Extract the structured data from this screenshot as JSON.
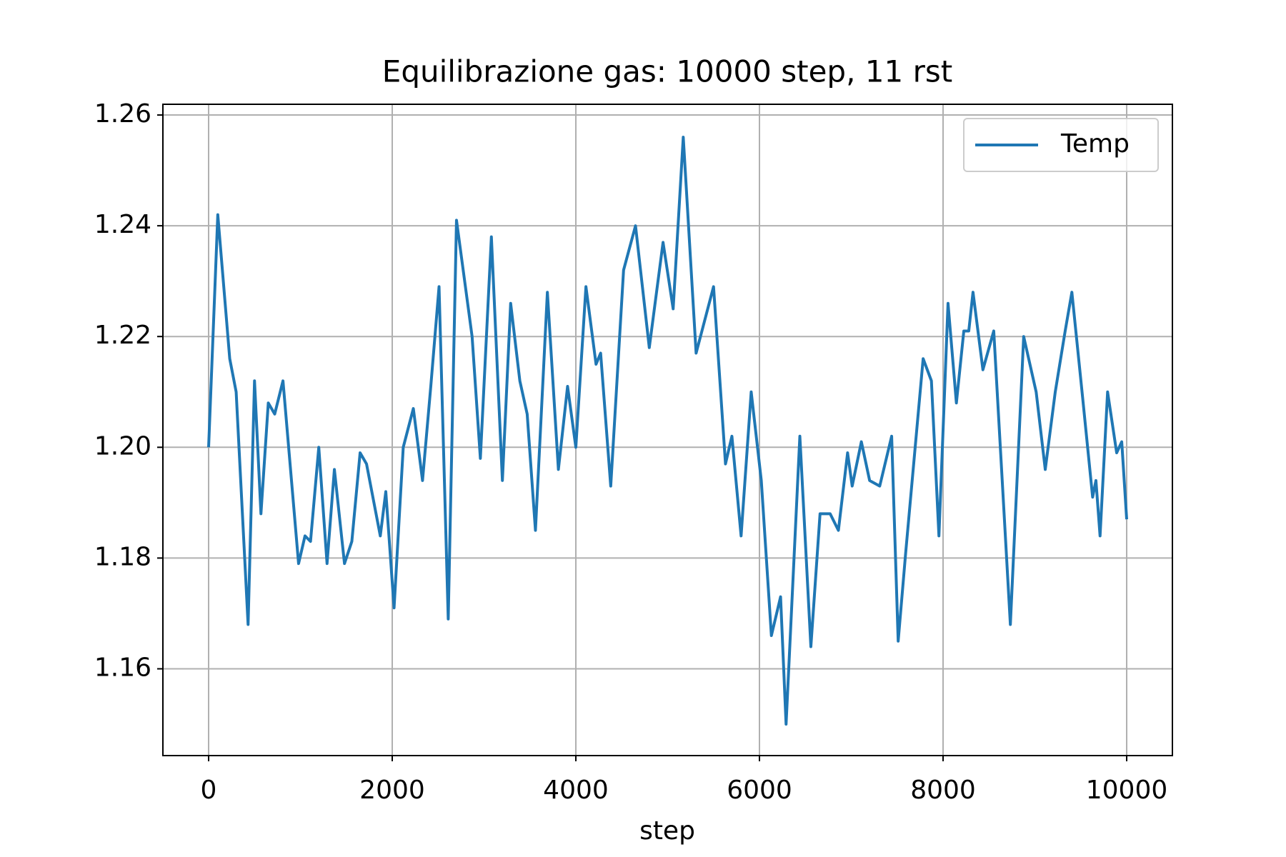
{
  "chart_data": {
    "type": "line",
    "title": "Equilibrazione gas: 10000 step, 11 rst",
    "x_label": "step",
    "xlim": [
      -498,
      10498
    ],
    "ylim": [
      1.14433,
      1.26194
    ],
    "xticks": [
      0,
      2000,
      4000,
      6000,
      8000,
      10000
    ],
    "yticks": [
      {
        "value": 1.16,
        "label": "1.16"
      },
      {
        "value": 1.18,
        "label": "1.18"
      },
      {
        "value": 1.2,
        "label": "1.20"
      },
      {
        "value": 1.22,
        "label": "1.22"
      },
      {
        "value": 1.24,
        "label": "1.24"
      },
      {
        "value": 1.26,
        "label": "1.26"
      }
    ],
    "grid": true,
    "legend": "upper right",
    "series": [
      {
        "name": "Temp",
        "color": "#1f77b4",
        "x": [
          0,
          100,
          230,
          300,
          430,
          500,
          570,
          650,
          720,
          810,
          980,
          1050,
          1110,
          1200,
          1290,
          1370,
          1480,
          1560,
          1650,
          1720,
          1870,
          1930,
          2020,
          2120,
          2230,
          2330,
          2420,
          2510,
          2610,
          2700,
          2870,
          2960,
          3080,
          3200,
          3290,
          3390,
          3470,
          3560,
          3690,
          3810,
          3910,
          4000,
          4110,
          4220,
          4270,
          4380,
          4520,
          4650,
          4800,
          4950,
          5060,
          5170,
          5310,
          5500,
          5630,
          5700,
          5800,
          5910,
          6020,
          6130,
          6230,
          6290,
          6440,
          6560,
          6660,
          6770,
          6860,
          6960,
          7010,
          7110,
          7200,
          7310,
          7440,
          7511,
          7593,
          7783,
          7873,
          7955,
          8054,
          8145,
          8226,
          8280,
          8326,
          8434,
          8552,
          8733,
          8878,
          9014,
          9113,
          9222,
          9330,
          9403,
          9520,
          9629,
          9665,
          9710,
          9792,
          9891,
          9946,
          10000
        ],
        "values": [
          1.2,
          1.242,
          1.216,
          1.21,
          1.168,
          1.212,
          1.188,
          1.208,
          1.206,
          1.212,
          1.179,
          1.184,
          1.183,
          1.2,
          1.179,
          1.196,
          1.179,
          1.183,
          1.199,
          1.197,
          1.184,
          1.192,
          1.171,
          1.2,
          1.207,
          1.194,
          1.211,
          1.229,
          1.169,
          1.241,
          1.22,
          1.198,
          1.238,
          1.194,
          1.226,
          1.212,
          1.206,
          1.185,
          1.228,
          1.196,
          1.211,
          1.2,
          1.229,
          1.215,
          1.217,
          1.193,
          1.232,
          1.24,
          1.218,
          1.237,
          1.225,
          1.256,
          1.217,
          1.229,
          1.197,
          1.202,
          1.184,
          1.21,
          1.194,
          1.166,
          1.173,
          1.15,
          1.202,
          1.164,
          1.188,
          1.188,
          1.185,
          1.199,
          1.193,
          1.201,
          1.194,
          1.193,
          1.202,
          1.165,
          1.181,
          1.216,
          1.212,
          1.184,
          1.226,
          1.208,
          1.221,
          1.221,
          1.228,
          1.214,
          1.221,
          1.168,
          1.22,
          1.21,
          1.196,
          1.21,
          1.221,
          1.228,
          1.209,
          1.191,
          1.194,
          1.184,
          1.21,
          1.199,
          1.201,
          1.187
        ]
      }
    ]
  }
}
